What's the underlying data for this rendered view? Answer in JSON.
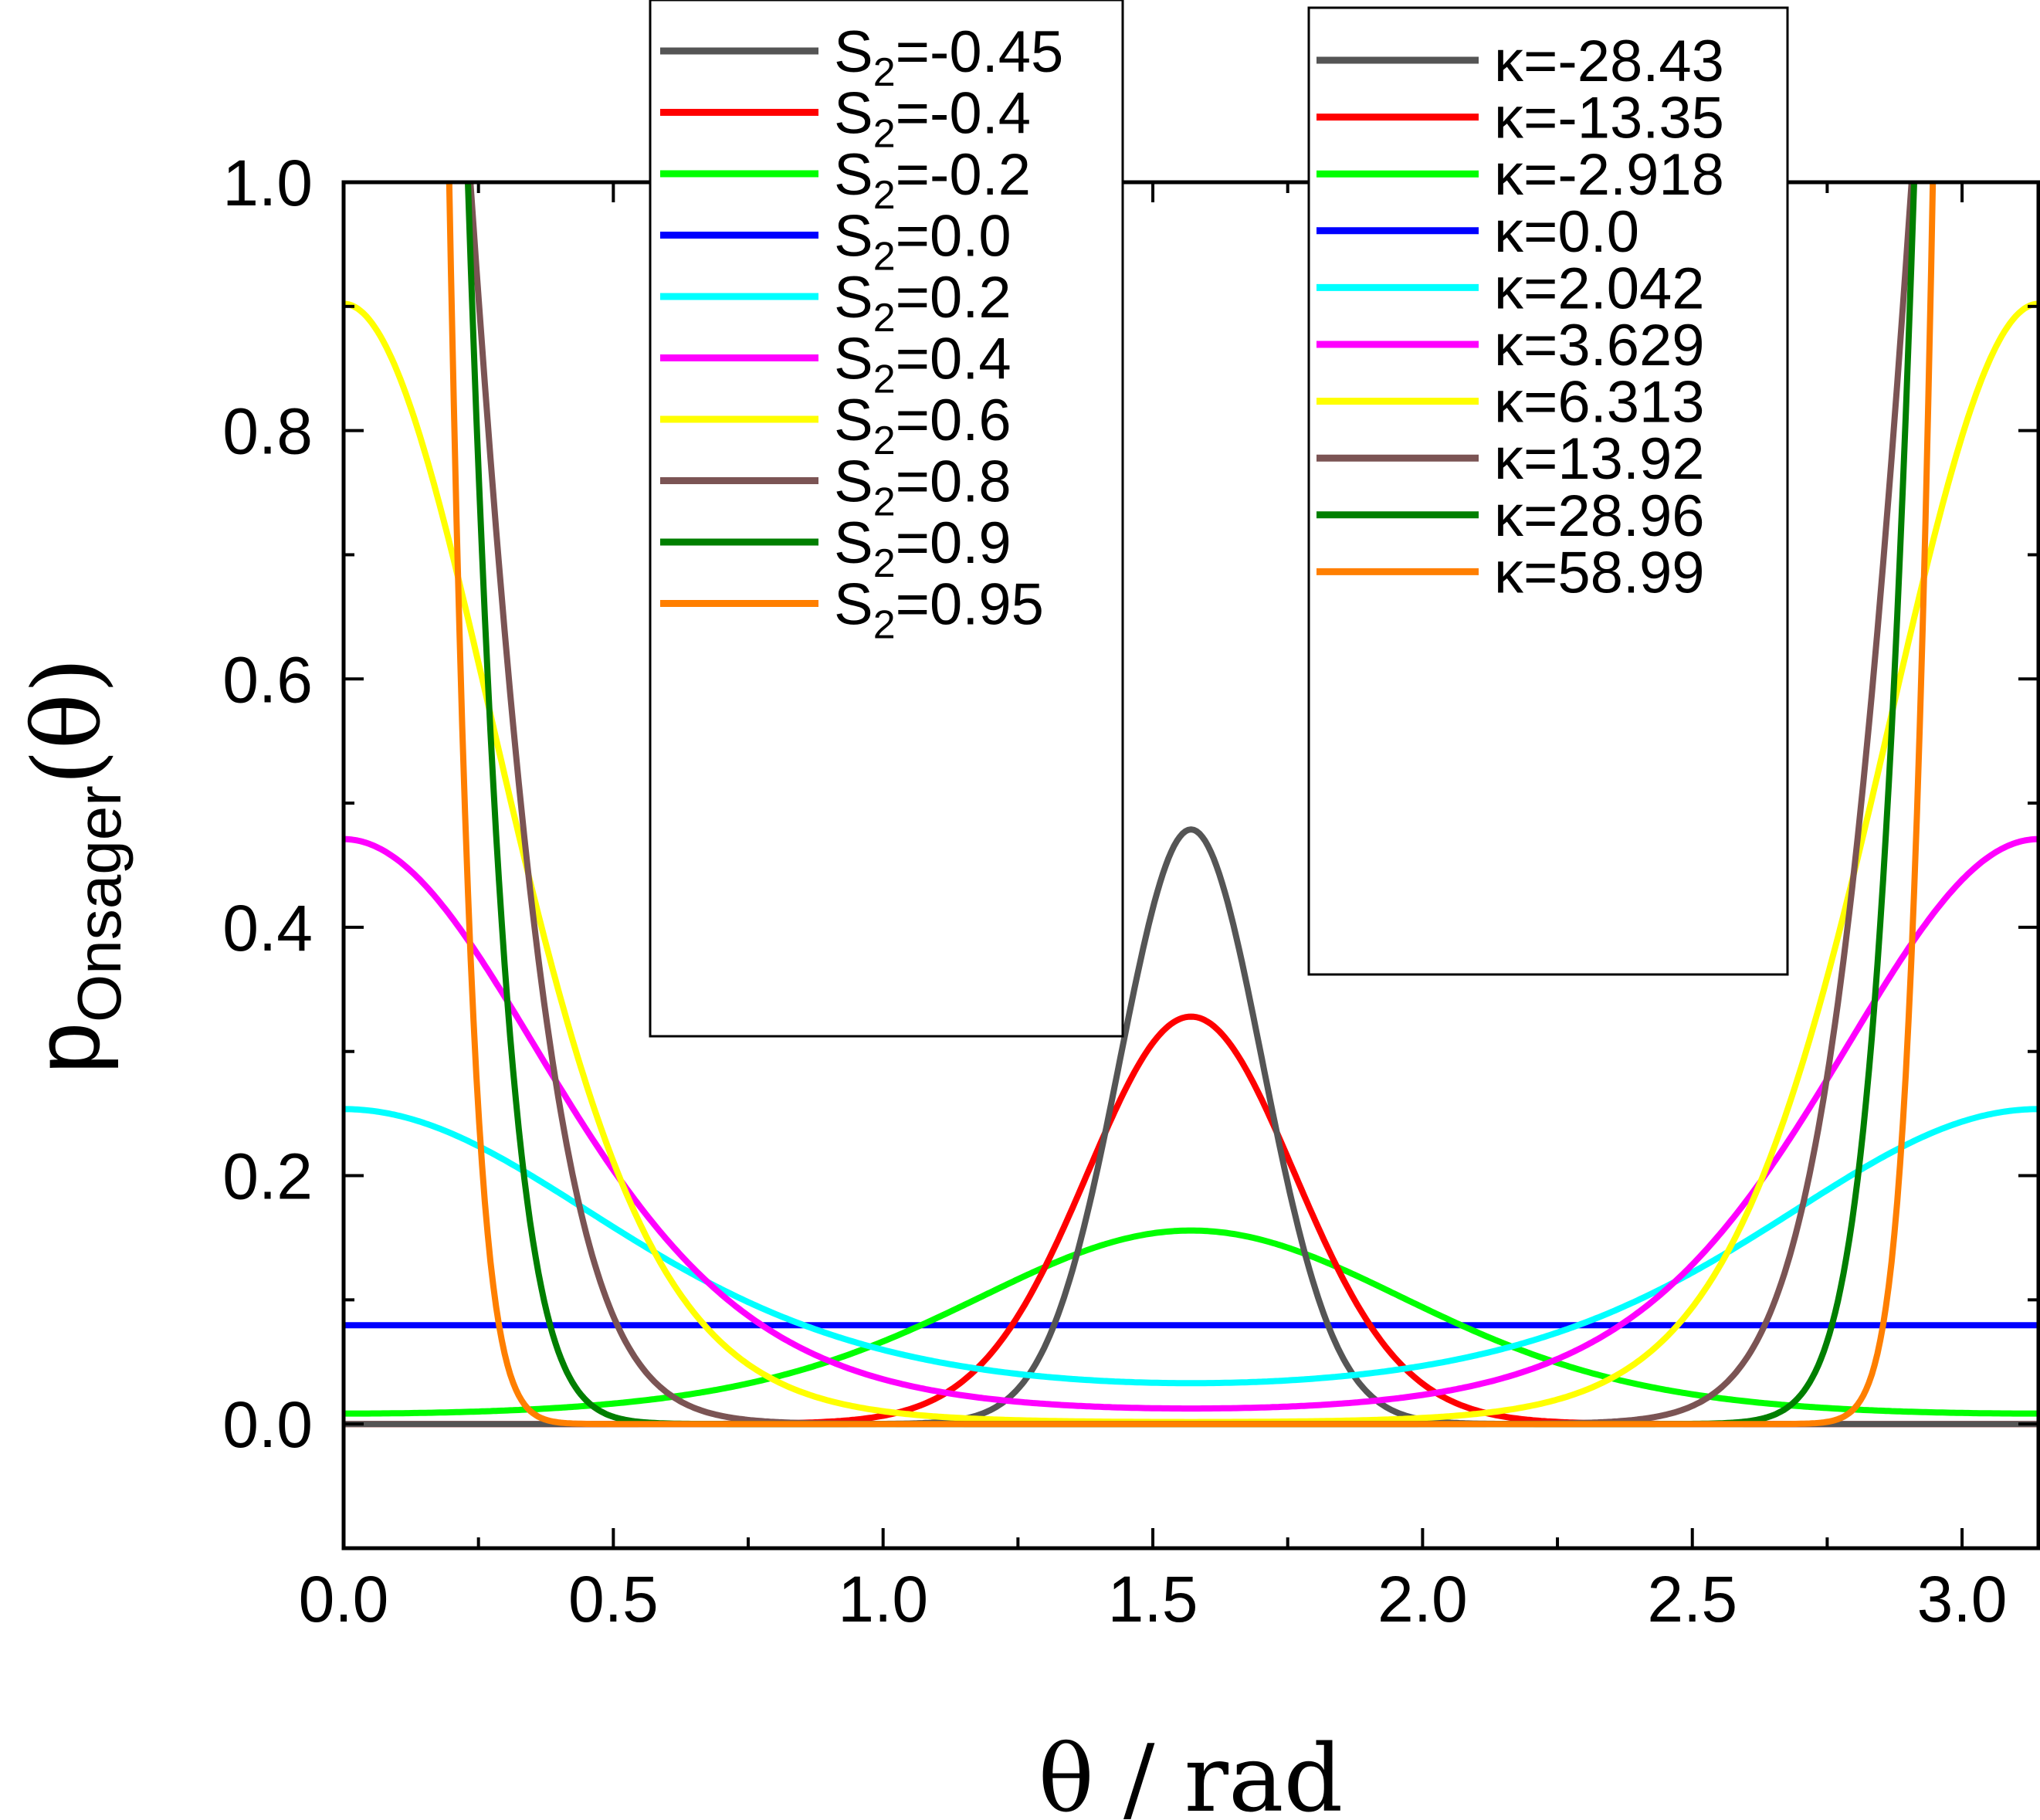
{
  "chart_data": {
    "type": "line",
    "xlabel": "θ / rad",
    "ylabel_main": "p",
    "ylabel_sub": "Onsager",
    "ylabel_tail": "(θ)",
    "xlim": [
      0,
      3.14159
    ],
    "ylim": [
      -0.1,
      1.0
    ],
    "xticks": [
      "0.0",
      "0.5",
      "1.0",
      "1.5",
      "2.0",
      "2.5",
      "3.0"
    ],
    "xtick_values": [
      0,
      0.5,
      1.0,
      1.5,
      2.0,
      2.5,
      3.0
    ],
    "yticks": [
      "0.0",
      "0.2",
      "0.4",
      "0.6",
      "0.8",
      "1.0"
    ],
    "ytick_values": [
      0,
      0.2,
      0.4,
      0.6,
      0.8,
      1.0
    ],
    "grid": false,
    "series": [
      {
        "s2": "-0.45",
        "kappa": "-28.43",
        "k": -28.43,
        "color": "#555555"
      },
      {
        "s2": "-0.4",
        "kappa": "-13.35",
        "k": -13.35,
        "color": "#ff0000"
      },
      {
        "s2": "-0.2",
        "kappa": "-2.918",
        "k": -2.918,
        "color": "#00ff00"
      },
      {
        "s2": "0.0",
        "kappa": "0.0",
        "k": 0.0,
        "color": "#0000ff"
      },
      {
        "s2": "0.2",
        "kappa": "2.042",
        "k": 2.042,
        "color": "#00ffff"
      },
      {
        "s2": "0.4",
        "kappa": "3.629",
        "k": 3.629,
        "color": "#ff00ff"
      },
      {
        "s2": "0.6",
        "kappa": "6.313",
        "k": 6.313,
        "color": "#ffff00"
      },
      {
        "s2": "0.8",
        "kappa": "13.92",
        "k": 13.92,
        "color": "#7b5454"
      },
      {
        "s2": "0.9",
        "kappa": "28.96",
        "k": 28.96,
        "color": "#007f00"
      },
      {
        "s2": "0.95",
        "kappa": "58.99",
        "k": 58.99,
        "color": "#ff7f00"
      }
    ],
    "legend_left_prefix": "S",
    "legend_left_sub": "2",
    "legend_left_eq": "=",
    "legend_right_prefix": "κ="
  }
}
